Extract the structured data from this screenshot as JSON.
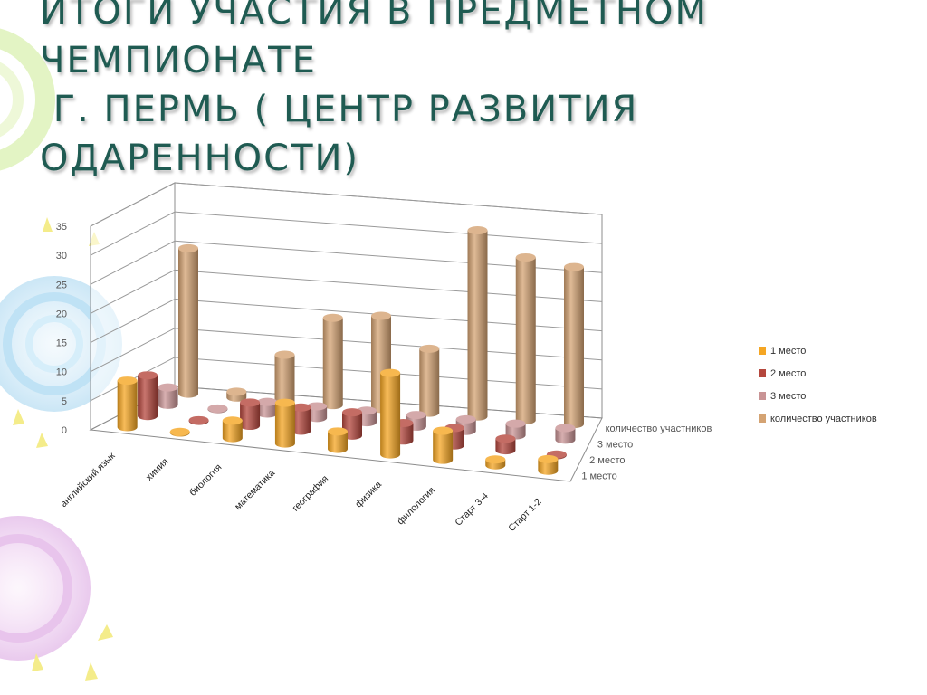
{
  "slide": {
    "title_lines": [
      "ИТОГИ УЧАСТИЯ В ПРЕДМЕТНОМ",
      "ЧЕМПИОНАТЕ",
      " Г. ПЕРМЬ ( ЦЕНТР РАЗВИТИЯ",
      "ОДАРЕННОСТИ)"
    ]
  },
  "chart_data": {
    "type": "bar",
    "subtype": "3d-column",
    "title": "",
    "categories": [
      "английский язык",
      "химия",
      "биология",
      "математика",
      "география",
      "физика",
      "филология",
      "Старт 3-4",
      "Старт 1-2"
    ],
    "depth_labels": [
      "1 место",
      "2 место",
      "3 место",
      "количество участников"
    ],
    "series": [
      {
        "name": "1 место",
        "color": "#f5a623",
        "values": [
          8,
          0,
          3,
          7,
          3,
          14,
          5,
          1,
          2
        ]
      },
      {
        "name": "2 место",
        "color": "#b5473d",
        "values": [
          7,
          0,
          4,
          4,
          4,
          3,
          3,
          2,
          0
        ]
      },
      {
        "name": "3 место",
        "color": "#c99495",
        "values": [
          3,
          0,
          2,
          2,
          2,
          2,
          2,
          2,
          2
        ]
      },
      {
        "name": "количество участников",
        "color": "#d4a373",
        "values": [
          25,
          1,
          8,
          15,
          16,
          11,
          32,
          28,
          27
        ]
      }
    ],
    "yticks": [
      0,
      5,
      10,
      15,
      20,
      25,
      30,
      35
    ],
    "ylim": [
      0,
      35
    ],
    "grid": true,
    "legend": "right"
  }
}
